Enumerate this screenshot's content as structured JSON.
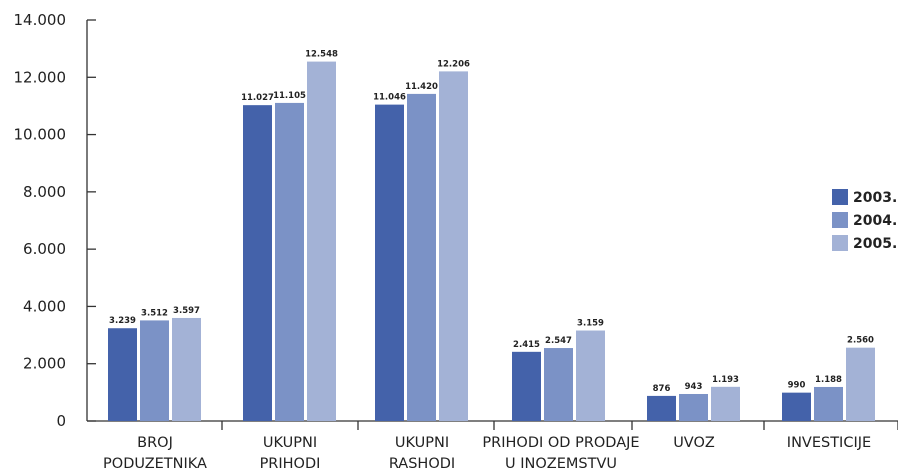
{
  "chart_data": {
    "type": "bar",
    "categories": [
      [
        "BROJ",
        "PODUZETNIKA"
      ],
      [
        "UKUPNI",
        "PRIHODI"
      ],
      [
        "UKUPNI",
        "RASHODI"
      ],
      [
        "PRIHODI OD PRODAJE",
        "U INOZEMSTVU"
      ],
      [
        "UVOZ"
      ],
      [
        "INVESTICIJE"
      ]
    ],
    "series": [
      {
        "name": "2003.",
        "values": [
          3239,
          11027,
          11046,
          2415,
          876,
          990
        ],
        "color": "#4462aa"
      },
      {
        "name": "2004.",
        "values": [
          3512,
          11105,
          11420,
          2547,
          943,
          1188
        ],
        "color": "#7b92c6"
      },
      {
        "name": "2005.",
        "values": [
          3597,
          12548,
          12206,
          3159,
          1193,
          2560
        ],
        "color": "#a3b2d6"
      }
    ],
    "value_labels": [
      [
        "3.239",
        "11.027",
        "11.046",
        "2.415",
        "876",
        "990"
      ],
      [
        "3.512",
        "11.105",
        "11.420",
        "2.547",
        "943",
        "1.188"
      ],
      [
        "3.597",
        "12.548",
        "12.206",
        "3.159",
        "1.193",
        "2.560"
      ]
    ],
    "yticks": [
      0,
      2000,
      4000,
      6000,
      8000,
      10000,
      12000,
      14000
    ],
    "ytick_labels": [
      "0",
      "2.000",
      "4.000",
      "6.000",
      "8.000",
      "10.000",
      "12.000",
      "14.000"
    ],
    "ylim": [
      0,
      14000
    ],
    "title": "",
    "xlabel": "",
    "ylabel": "",
    "legend_position": "right",
    "grid": false
  }
}
